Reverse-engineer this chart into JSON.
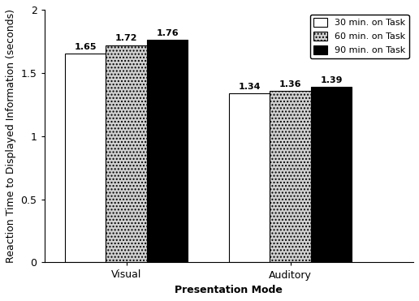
{
  "groups": [
    "Visual",
    "Auditory"
  ],
  "series": [
    "30 min. on Task",
    "60 min. on Task",
    "90 min. on Task"
  ],
  "values": {
    "Visual": [
      1.65,
      1.72,
      1.76
    ],
    "Auditory": [
      1.34,
      1.36,
      1.39
    ]
  },
  "bar_colors": [
    "#ffffff",
    "#d0d0d0",
    "#000000"
  ],
  "bar_hatch": [
    "",
    "....",
    ""
  ],
  "bar_edge_color": "#000000",
  "ylabel": "Reaction Time to Displayed Information (seconds)",
  "xlabel": "Presentation Mode",
  "ylim": [
    0,
    2
  ],
  "yticks": [
    0,
    0.5,
    1,
    1.5,
    2
  ],
  "bar_width": 0.1,
  "group_centers": [
    0.25,
    0.65
  ],
  "legend_fontsize": 8,
  "label_fontsize": 9,
  "tick_fontsize": 9,
  "value_fontsize": 8,
  "background_color": "#ffffff"
}
